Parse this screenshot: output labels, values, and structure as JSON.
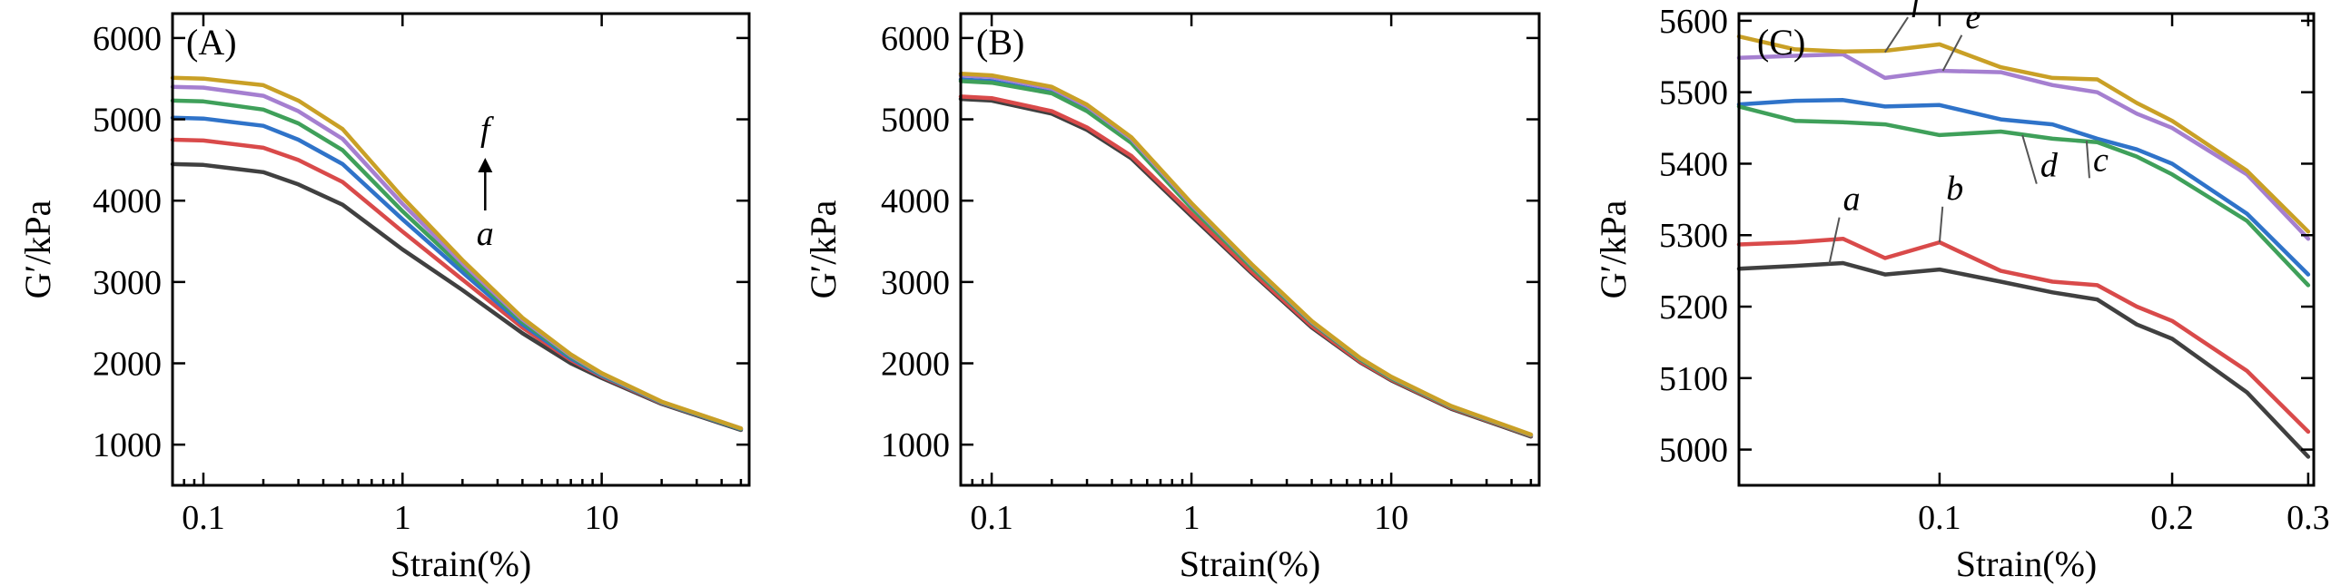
{
  "colors": {
    "a": "#404040",
    "b": "#d94a4a",
    "c": "#2f73c9",
    "d": "#3fa05a",
    "e": "#a57fd0",
    "f": "#c9a026"
  },
  "chart_data": [
    {
      "type": "line",
      "tag": "(A)",
      "xscale": "log",
      "xlabel": "Strain(%)",
      "ylabel": "G′/kPa",
      "xlim": [
        0.07,
        55
      ],
      "ylim": [
        500,
        6300
      ],
      "xticks": [
        0.1,
        1,
        10
      ],
      "xticklabels": [
        "0.1",
        "1",
        "10"
      ],
      "yticks": [
        1000,
        2000,
        3000,
        4000,
        5000,
        6000
      ],
      "yticklabels": [
        "1000",
        "2000",
        "3000",
        "4000",
        "5000",
        "6000"
      ],
      "annotations": {
        "top": "f",
        "bottom": "a"
      },
      "series": [
        {
          "name": "a",
          "x": [
            0.07,
            0.1,
            0.2,
            0.3,
            0.5,
            1,
            2,
            4,
            7,
            10,
            20,
            50
          ],
          "y": [
            4450,
            4440,
            4350,
            4200,
            3950,
            3400,
            2900,
            2370,
            2000,
            1820,
            1500,
            1180
          ]
        },
        {
          "name": "b",
          "x": [
            0.07,
            0.1,
            0.2,
            0.3,
            0.5,
            1,
            2,
            4,
            7,
            10,
            20,
            50
          ],
          "y": [
            4750,
            4740,
            4650,
            4500,
            4230,
            3620,
            3030,
            2440,
            2040,
            1840,
            1510,
            1190
          ]
        },
        {
          "name": "c",
          "x": [
            0.07,
            0.1,
            0.2,
            0.3,
            0.5,
            1,
            2,
            4,
            7,
            10,
            20,
            50
          ],
          "y": [
            5020,
            5010,
            4920,
            4750,
            4450,
            3770,
            3120,
            2480,
            2060,
            1850,
            1515,
            1190
          ]
        },
        {
          "name": "d",
          "x": [
            0.07,
            0.1,
            0.2,
            0.3,
            0.5,
            1,
            2,
            4,
            7,
            10,
            20,
            50
          ],
          "y": [
            5230,
            5220,
            5120,
            4950,
            4620,
            3870,
            3180,
            2510,
            2080,
            1860,
            1520,
            1195
          ]
        },
        {
          "name": "e",
          "x": [
            0.07,
            0.1,
            0.2,
            0.3,
            0.5,
            1,
            2,
            4,
            7,
            10,
            20,
            50
          ],
          "y": [
            5400,
            5390,
            5290,
            5100,
            4760,
            3960,
            3230,
            2540,
            2095,
            1870,
            1525,
            1200
          ]
        },
        {
          "name": "f",
          "x": [
            0.07,
            0.1,
            0.2,
            0.3,
            0.5,
            1,
            2,
            4,
            7,
            10,
            20,
            50
          ],
          "y": [
            5510,
            5500,
            5420,
            5230,
            4880,
            4040,
            3270,
            2560,
            2110,
            1880,
            1530,
            1200
          ]
        }
      ]
    },
    {
      "type": "line",
      "tag": "(B)",
      "xscale": "log",
      "xlabel": "Strain(%)",
      "ylabel": "G′/kPa",
      "xlim": [
        0.07,
        55
      ],
      "ylim": [
        500,
        6300
      ],
      "xticks": [
        0.1,
        1,
        10
      ],
      "xticklabels": [
        "0.1",
        "1",
        "10"
      ],
      "yticks": [
        1000,
        2000,
        3000,
        4000,
        5000,
        6000
      ],
      "yticklabels": [
        "1000",
        "2000",
        "3000",
        "4000",
        "5000",
        "6000"
      ],
      "series": [
        {
          "name": "a",
          "x": [
            0.07,
            0.1,
            0.2,
            0.3,
            0.5,
            1,
            2,
            4,
            7,
            10,
            20,
            50
          ],
          "y": [
            5250,
            5230,
            5070,
            4870,
            4520,
            3810,
            3110,
            2440,
            2010,
            1790,
            1440,
            1100
          ]
        },
        {
          "name": "b",
          "x": [
            0.07,
            0.1,
            0.2,
            0.3,
            0.5,
            1,
            2,
            4,
            7,
            10,
            20,
            50
          ],
          "y": [
            5280,
            5260,
            5100,
            4900,
            4550,
            3840,
            3130,
            2460,
            2020,
            1800,
            1450,
            1110
          ]
        },
        {
          "name": "c",
          "x": [
            0.07,
            0.1,
            0.2,
            0.3,
            0.5,
            1,
            2,
            4,
            7,
            10,
            20,
            50
          ],
          "y": [
            5490,
            5470,
            5330,
            5110,
            4720,
            3920,
            3190,
            2500,
            2050,
            1820,
            1465,
            1120
          ]
        },
        {
          "name": "d",
          "x": [
            0.07,
            0.1,
            0.2,
            0.3,
            0.5,
            1,
            2,
            4,
            7,
            10,
            20,
            50
          ],
          "y": [
            5470,
            5450,
            5320,
            5100,
            4710,
            3910,
            3180,
            2495,
            2045,
            1815,
            1460,
            1115
          ]
        },
        {
          "name": "e",
          "x": [
            0.07,
            0.1,
            0.2,
            0.3,
            0.5,
            1,
            2,
            4,
            7,
            10,
            20,
            50
          ],
          "y": [
            5540,
            5520,
            5380,
            5160,
            4760,
            3950,
            3210,
            2510,
            2060,
            1830,
            1470,
            1120
          ]
        },
        {
          "name": "f",
          "x": [
            0.07,
            0.1,
            0.2,
            0.3,
            0.5,
            1,
            2,
            4,
            7,
            10,
            20,
            50
          ],
          "y": [
            5560,
            5540,
            5400,
            5180,
            4780,
            3970,
            3220,
            2520,
            2065,
            1835,
            1475,
            1125
          ]
        }
      ]
    },
    {
      "type": "line",
      "tag": "(C)",
      "xscale": "log",
      "xlabel": "Strain(%)",
      "ylabel": "G′/kPa",
      "xlim": [
        0.055,
        0.305
      ],
      "ylim": [
        4950,
        5610
      ],
      "xticks": [
        0.1,
        0.2,
        0.3
      ],
      "xticklabels": [
        "0.1",
        "0.2",
        "0.3"
      ],
      "yticks": [
        5000,
        5100,
        5200,
        5300,
        5400,
        5500,
        5600
      ],
      "yticklabels": [
        "5000",
        "5100",
        "5200",
        "5300",
        "5400",
        "5500",
        "5600"
      ],
      "series": [
        {
          "name": "a",
          "label": "a",
          "x": [
            0.055,
            0.065,
            0.075,
            0.085,
            0.1,
            0.12,
            0.14,
            0.16,
            0.18,
            0.2,
            0.25,
            0.3
          ],
          "y": [
            5253,
            5257,
            5261,
            5245,
            5252,
            5235,
            5220,
            5210,
            5175,
            5155,
            5080,
            4990
          ]
        },
        {
          "name": "b",
          "label": "b",
          "x": [
            0.055,
            0.065,
            0.075,
            0.085,
            0.1,
            0.12,
            0.14,
            0.16,
            0.18,
            0.2,
            0.25,
            0.3
          ],
          "y": [
            5287,
            5290,
            5295,
            5268,
            5290,
            5250,
            5235,
            5230,
            5200,
            5180,
            5110,
            5025
          ]
        },
        {
          "name": "c",
          "label": "c",
          "x": [
            0.055,
            0.065,
            0.075,
            0.085,
            0.1,
            0.12,
            0.14,
            0.16,
            0.18,
            0.2,
            0.25,
            0.3
          ],
          "y": [
            5483,
            5488,
            5489,
            5480,
            5482,
            5462,
            5455,
            5435,
            5420,
            5400,
            5330,
            5245
          ]
        },
        {
          "name": "d",
          "label": "d",
          "x": [
            0.055,
            0.065,
            0.075,
            0.085,
            0.1,
            0.12,
            0.14,
            0.16,
            0.18,
            0.2,
            0.25,
            0.3
          ],
          "y": [
            5480,
            5460,
            5458,
            5455,
            5440,
            5445,
            5435,
            5430,
            5410,
            5385,
            5320,
            5230
          ]
        },
        {
          "name": "e",
          "label": "e",
          "x": [
            0.055,
            0.065,
            0.075,
            0.085,
            0.1,
            0.12,
            0.14,
            0.16,
            0.18,
            0.2,
            0.25,
            0.3
          ],
          "y": [
            5548,
            5551,
            5553,
            5520,
            5530,
            5528,
            5510,
            5500,
            5470,
            5450,
            5385,
            5295
          ]
        },
        {
          "name": "f",
          "label": "f",
          "x": [
            0.055,
            0.065,
            0.075,
            0.085,
            0.1,
            0.12,
            0.14,
            0.16,
            0.18,
            0.2,
            0.25,
            0.3
          ],
          "y": [
            5578,
            5560,
            5557,
            5558,
            5567,
            5535,
            5520,
            5518,
            5485,
            5460,
            5390,
            5305
          ]
        }
      ]
    }
  ]
}
